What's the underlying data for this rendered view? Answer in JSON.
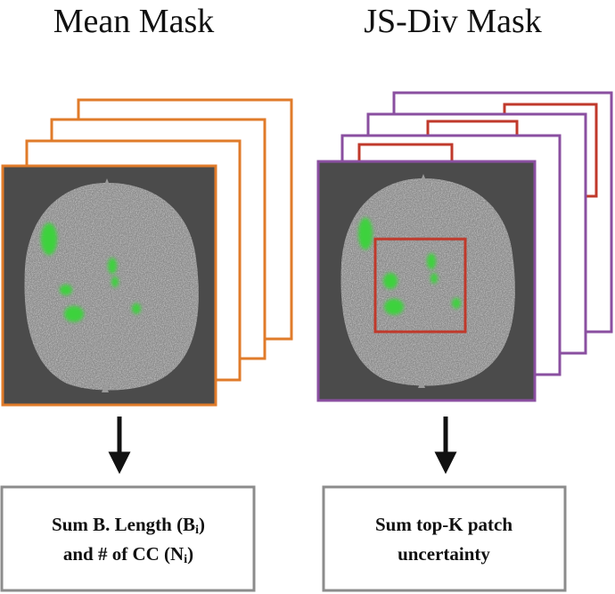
{
  "left_panel": {
    "title": "Mean Mask",
    "frame_color": "#e07b2a",
    "box_line1_pre": "Sum B. Length (B",
    "box_line1_sub": "i",
    "box_line1_post": ")",
    "box_line2_pre": "and # of CC (N",
    "box_line2_sub": "i",
    "box_line2_post": ")"
  },
  "right_panel": {
    "title": "JS-Div Mask",
    "frame_color": "#8a4fa0",
    "patch_color": "#c0392b",
    "box_line1": "Sum top-K patch",
    "box_line2": "uncertainty"
  },
  "colors": {
    "scan_background": "#4b4b4b",
    "lesion": "#3cd23c",
    "arrow": "#111111",
    "box_border": "#8c8c8c"
  }
}
